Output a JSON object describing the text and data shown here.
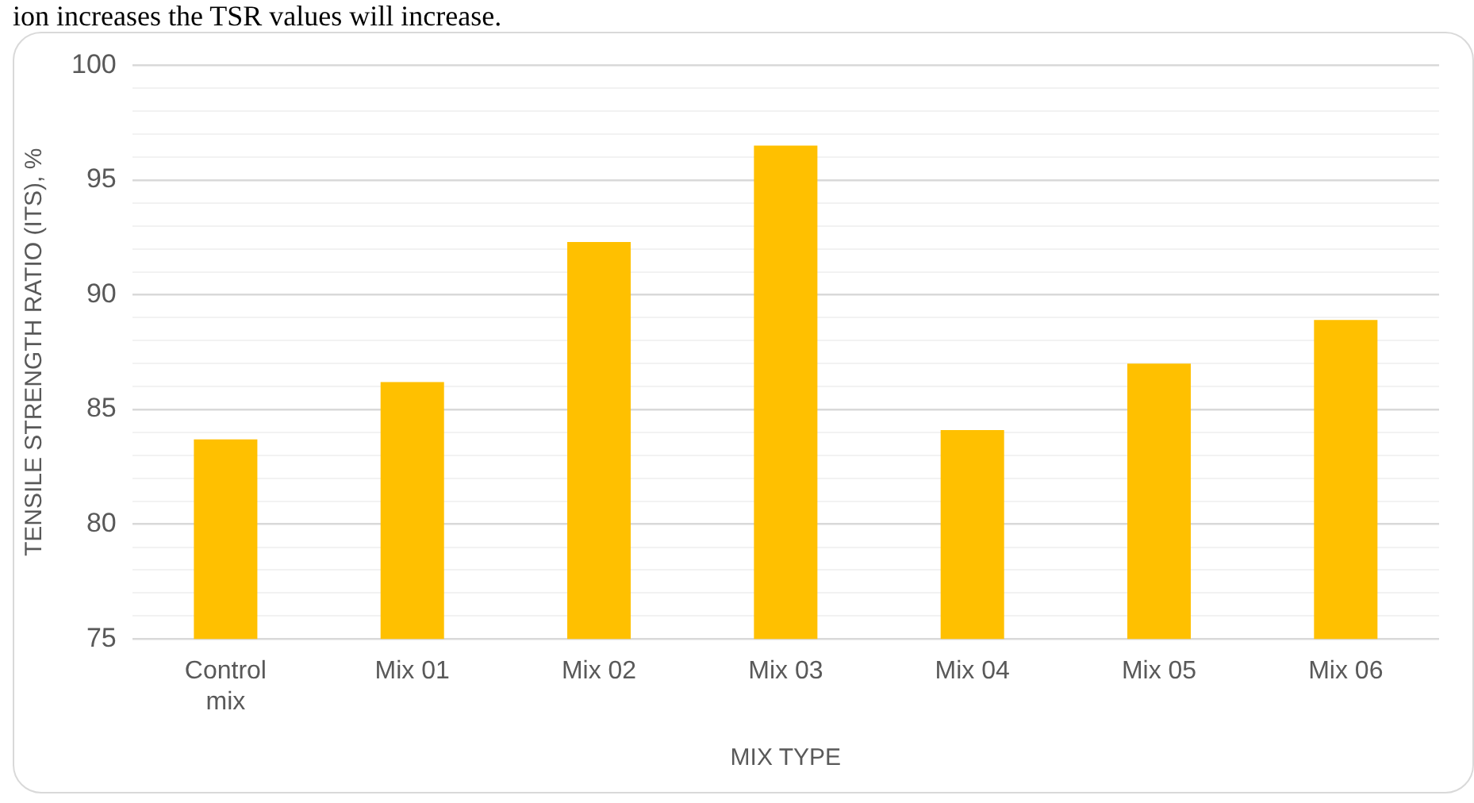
{
  "chart_data": {
    "type": "bar",
    "xlabel": "MIX TYPE",
    "ylabel": "TENSILE STRENGTH RATIO (ITS), %",
    "annotations": [
      "ion increases the TSR values will increase."
    ],
    "categories": [
      "Control\nmix",
      "Mix 01",
      "Mix 02",
      "Mix 03",
      "Mix 04",
      "Mix 05",
      "Mix 06"
    ],
    "values": [
      83.7,
      86.2,
      92.3,
      96.5,
      84.1,
      87.0,
      88.9
    ],
    "color": "#ffc000",
    "ylim": [
      75,
      100
    ],
    "yticks": [
      75,
      {
        "value": 76,
        "label": null
      },
      {
        "value": 77,
        "label": null
      },
      {
        "value": 78,
        "label": null
      },
      {
        "value": 79,
        "label": null
      },
      80,
      {
        "value": 81,
        "label": null
      },
      {
        "value": 82,
        "label": null
      },
      {
        "value": 83,
        "label": null
      },
      {
        "value": 84,
        "label": null
      },
      85,
      {
        "value": 86,
        "label": null
      },
      {
        "value": 87,
        "label": null
      },
      {
        "value": 88,
        "label": null
      },
      {
        "value": 89,
        "label": null
      },
      90,
      {
        "value": 91,
        "label": null
      },
      {
        "value": 92,
        "label": null
      },
      {
        "value": 93,
        "label": null
      },
      {
        "value": 94,
        "label": null
      },
      95,
      {
        "value": 96,
        "label": null
      },
      {
        "value": 97,
        "label": null
      },
      {
        "value": 98,
        "label": null
      },
      {
        "value": 99,
        "label": null
      },
      100
    ],
    "grid": "y",
    "legend": false
  }
}
